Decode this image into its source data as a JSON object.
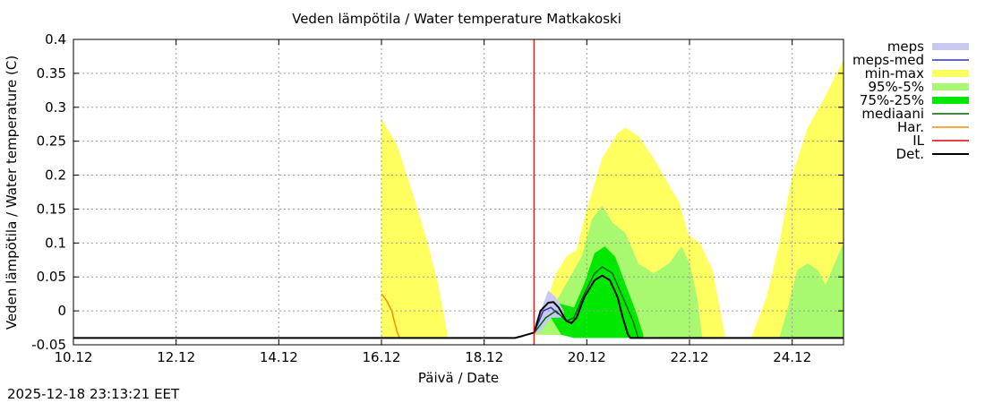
{
  "chart_data": {
    "type": "area",
    "title": "Veden lämpötila / Water temperature Matkakoski",
    "xlabel": "Päivä / Date",
    "ylabel": "Veden lämpötila / Water temperature (C)",
    "timestamp": "2025-12-18 23:13:21 EET",
    "x_unit": "days since 10.12",
    "xlim": [
      0,
      15
    ],
    "ylim": [
      -0.05,
      0.4
    ],
    "grid": true,
    "x_ticks": [
      {
        "x": 0,
        "label": "10.12"
      },
      {
        "x": 2,
        "label": "12.12"
      },
      {
        "x": 4,
        "label": "14.12"
      },
      {
        "x": 6,
        "label": "16.12"
      },
      {
        "x": 8,
        "label": "18.12"
      },
      {
        "x": 10,
        "label": "20.12"
      },
      {
        "x": 12,
        "label": "22.12"
      },
      {
        "x": 14,
        "label": "24.12"
      }
    ],
    "y_ticks": [
      {
        "y": 0.4,
        "label": "0.4"
      },
      {
        "y": 0.35,
        "label": "0.35"
      },
      {
        "y": 0.3,
        "label": "0.3"
      },
      {
        "y": 0.25,
        "label": "0.25"
      },
      {
        "y": 0.2,
        "label": "0.2"
      },
      {
        "y": 0.15,
        "label": "0.15"
      },
      {
        "y": 0.1,
        "label": "0.1"
      },
      {
        "y": 0.05,
        "label": "0.05"
      },
      {
        "y": 0,
        "label": "0"
      },
      {
        "y": -0.05,
        "label": "-0.05"
      }
    ],
    "colors": {
      "meps": "#c8c8f0",
      "meps_med": "#3030b0",
      "minmax": "#ffff60",
      "p95_5": "#a8f870",
      "p75_25": "#00e800",
      "median": "#006400",
      "har": "#ff8c00",
      "il": "#dd0000",
      "det": "#000000"
    },
    "legend": [
      {
        "key": "meps",
        "label": "meps",
        "kind": "band"
      },
      {
        "key": "meps_med",
        "label": "meps-med",
        "kind": "line"
      },
      {
        "key": "minmax",
        "label": "min-max",
        "kind": "band"
      },
      {
        "key": "p95_5",
        "label": "95%-5%",
        "kind": "band"
      },
      {
        "key": "p75_25",
        "label": "75%-25%",
        "kind": "band"
      },
      {
        "key": "median",
        "label": "mediaani",
        "kind": "line"
      },
      {
        "key": "har",
        "label": "Har.",
        "kind": "line"
      },
      {
        "key": "il",
        "label": "IL",
        "kind": "line"
      },
      {
        "key": "det",
        "label": "Det.",
        "kind": "line"
      }
    ],
    "il_x": 8.97,
    "series": [
      {
        "name": "min-max",
        "kind": "band",
        "color_key": "minmax",
        "upper": [
          [
            6.0,
            0.283
          ],
          [
            6.3,
            0.245
          ],
          [
            6.6,
            0.175
          ],
          [
            6.9,
            0.1
          ],
          [
            7.1,
            0.04
          ],
          [
            7.3,
            -0.04
          ]
        ],
        "lower": [
          [
            6.0,
            -0.04
          ],
          [
            7.3,
            -0.04
          ]
        ]
      },
      {
        "name": "min-max",
        "kind": "band",
        "color_key": "minmax",
        "upper": [
          [
            8.97,
            -0.035
          ],
          [
            9.2,
            0.01
          ],
          [
            9.4,
            0.055
          ],
          [
            9.6,
            0.08
          ],
          [
            9.8,
            0.09
          ],
          [
            10.0,
            0.15
          ],
          [
            10.3,
            0.225
          ],
          [
            10.6,
            0.262
          ],
          [
            10.75,
            0.27
          ],
          [
            11.0,
            0.258
          ],
          [
            11.3,
            0.225
          ],
          [
            11.6,
            0.185
          ],
          [
            11.8,
            0.16
          ],
          [
            11.95,
            0.12
          ],
          [
            12.0,
            0.11
          ],
          [
            12.2,
            0.1
          ],
          [
            12.45,
            0.06
          ],
          [
            12.6,
            0.0
          ],
          [
            12.7,
            -0.04
          ]
        ],
        "lower": [
          [
            8.97,
            -0.035
          ],
          [
            12.7,
            -0.04
          ]
        ]
      },
      {
        "name": "min-max",
        "kind": "band",
        "color_key": "minmax",
        "upper": [
          [
            13.2,
            -0.04
          ],
          [
            13.5,
            0.02
          ],
          [
            13.75,
            0.1
          ],
          [
            14.0,
            0.2
          ],
          [
            14.3,
            0.27
          ],
          [
            14.6,
            0.31
          ],
          [
            14.8,
            0.34
          ],
          [
            15.0,
            0.37
          ]
        ],
        "lower": [
          [
            13.2,
            -0.04
          ],
          [
            15.0,
            -0.04
          ]
        ]
      },
      {
        "name": "95%-5%",
        "kind": "band",
        "color_key": "p95_5",
        "upper": [
          [
            8.97,
            -0.035
          ],
          [
            9.3,
            0.0
          ],
          [
            9.6,
            0.04
          ],
          [
            9.9,
            0.08
          ],
          [
            10.1,
            0.135
          ],
          [
            10.3,
            0.155
          ],
          [
            10.5,
            0.13
          ],
          [
            10.75,
            0.115
          ],
          [
            11.0,
            0.07
          ],
          [
            11.3,
            0.055
          ],
          [
            11.6,
            0.07
          ],
          [
            11.85,
            0.095
          ],
          [
            12.0,
            0.07
          ],
          [
            12.15,
            0.02
          ],
          [
            12.25,
            -0.04
          ]
        ],
        "lower": [
          [
            8.97,
            -0.035
          ],
          [
            12.25,
            -0.04
          ]
        ]
      },
      {
        "name": "95%-5%",
        "kind": "band",
        "color_key": "p95_5",
        "upper": [
          [
            13.75,
            -0.04
          ],
          [
            13.9,
            0.0
          ],
          [
            14.1,
            0.06
          ],
          [
            14.3,
            0.07
          ],
          [
            14.5,
            0.06
          ],
          [
            14.65,
            0.038
          ],
          [
            14.8,
            0.065
          ],
          [
            15.0,
            0.1
          ]
        ],
        "lower": [
          [
            13.75,
            -0.04
          ],
          [
            15.0,
            -0.04
          ]
        ]
      },
      {
        "name": "75%-25%",
        "kind": "band",
        "color_key": "p75_25",
        "upper": [
          [
            9.1,
            -0.02
          ],
          [
            9.3,
            0.017
          ],
          [
            9.5,
            0.01
          ],
          [
            9.75,
            0.005
          ],
          [
            9.95,
            0.04
          ],
          [
            10.15,
            0.085
          ],
          [
            10.35,
            0.095
          ],
          [
            10.55,
            0.08
          ],
          [
            10.75,
            0.04
          ],
          [
            10.95,
            0.0
          ],
          [
            11.1,
            -0.035
          ]
        ],
        "lower": [
          [
            9.1,
            -0.02
          ],
          [
            9.3,
            -0.01
          ],
          [
            9.5,
            -0.035
          ],
          [
            9.75,
            -0.04
          ],
          [
            10.0,
            -0.04
          ],
          [
            11.1,
            -0.04
          ]
        ]
      },
      {
        "name": "meps",
        "kind": "band",
        "color_key": "meps",
        "upper": [
          [
            8.97,
            -0.035
          ],
          [
            9.1,
            0.0
          ],
          [
            9.25,
            0.03
          ],
          [
            9.4,
            0.02
          ],
          [
            9.55,
            0.0
          ]
        ],
        "lower": [
          [
            8.97,
            -0.035
          ],
          [
            9.1,
            -0.03
          ],
          [
            9.3,
            -0.01
          ],
          [
            9.55,
            -0.01
          ]
        ]
      },
      {
        "name": "meps-med",
        "kind": "line",
        "color_key": "meps_med",
        "points": [
          [
            8.97,
            -0.033
          ],
          [
            9.15,
            0.0
          ],
          [
            9.3,
            0.005
          ],
          [
            9.45,
            -0.005
          ]
        ]
      },
      {
        "name": "mediaani",
        "kind": "line",
        "color_key": "median",
        "points": [
          [
            8.97,
            -0.033
          ],
          [
            9.2,
            -0.01
          ],
          [
            9.4,
            0.0
          ],
          [
            9.6,
            -0.015
          ],
          [
            9.75,
            -0.01
          ],
          [
            9.95,
            0.025
          ],
          [
            10.15,
            0.055
          ],
          [
            10.3,
            0.065
          ],
          [
            10.5,
            0.055
          ],
          [
            10.7,
            0.02
          ],
          [
            10.9,
            -0.015
          ],
          [
            11.0,
            -0.04
          ]
        ]
      },
      {
        "name": "Har.",
        "kind": "line",
        "color_key": "har",
        "points": [
          [
            6.0,
            0.025
          ],
          [
            6.1,
            0.015
          ],
          [
            6.2,
            0.0
          ],
          [
            6.25,
            -0.015
          ],
          [
            6.3,
            -0.03
          ],
          [
            6.35,
            -0.04
          ]
        ]
      },
      {
        "name": "Det.",
        "kind": "line",
        "color_key": "det",
        "points": [
          [
            0,
            -0.04
          ],
          [
            8.6,
            -0.04
          ],
          [
            8.75,
            -0.037
          ],
          [
            8.97,
            -0.032
          ],
          [
            9.1,
            0.0
          ],
          [
            9.25,
            0.012
          ],
          [
            9.35,
            0.013
          ],
          [
            9.45,
            0.005
          ],
          [
            9.6,
            -0.015
          ],
          [
            9.7,
            -0.018
          ],
          [
            9.8,
            -0.01
          ],
          [
            9.95,
            0.02
          ],
          [
            10.15,
            0.045
          ],
          [
            10.3,
            0.052
          ],
          [
            10.45,
            0.045
          ],
          [
            10.6,
            0.02
          ],
          [
            10.7,
            -0.01
          ],
          [
            10.8,
            -0.035
          ],
          [
            10.85,
            -0.04
          ],
          [
            15.0,
            -0.04
          ]
        ]
      }
    ]
  }
}
